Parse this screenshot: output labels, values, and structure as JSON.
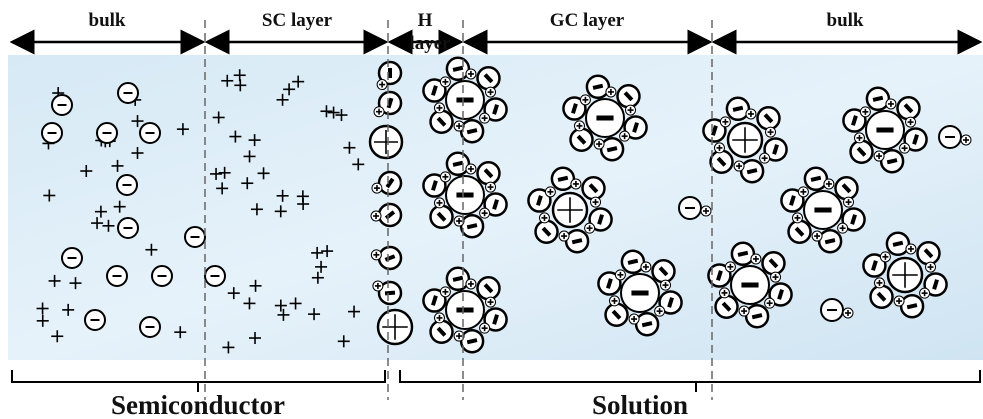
{
  "regions": [
    {
      "label": "bulk"
    },
    {
      "label": "SC layer"
    },
    {
      "label_lines": [
        "H",
        "layer"
      ]
    },
    {
      "label": "GC layer"
    },
    {
      "label": "bulk"
    }
  ],
  "bottom_labels": [
    "Semiconductor",
    "Solution"
  ]
}
